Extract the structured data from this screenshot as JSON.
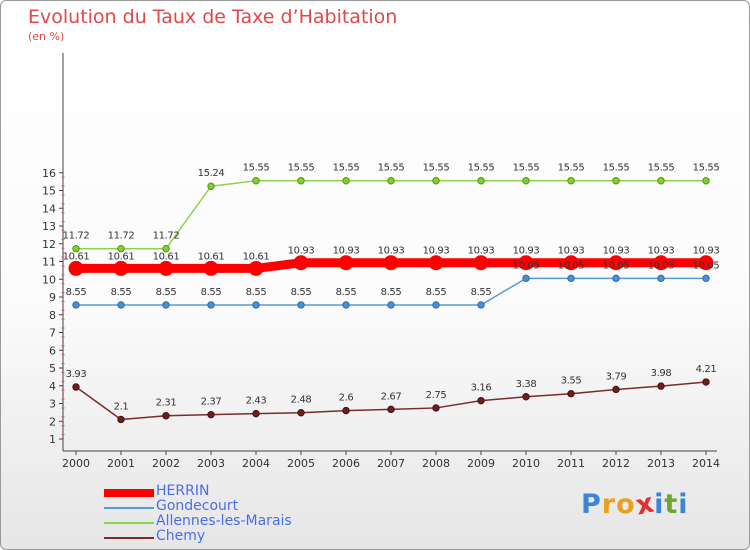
{
  "chart_data": {
    "type": "line",
    "title": "Evolution du Taux de Taxe d’Habitation",
    "subtitle": "(en %)",
    "xlabel": "",
    "ylabel": "",
    "x": [
      "2000",
      "2001",
      "2002",
      "2003",
      "2004",
      "2005",
      "2006",
      "2007",
      "2008",
      "2009",
      "2010",
      "2011",
      "2012",
      "2013",
      "2014"
    ],
    "ylim": [
      1,
      16
    ],
    "yticks": [
      1,
      2,
      3,
      4,
      5,
      6,
      7,
      8,
      9,
      10,
      11,
      12,
      13,
      14,
      15,
      16
    ],
    "grid": false,
    "legend_position": "bottom-left",
    "series": [
      {
        "name": "HERRIN",
        "color": "#ff0000",
        "values": [
          10.61,
          10.61,
          10.61,
          10.61,
          10.61,
          10.93,
          10.93,
          10.93,
          10.93,
          10.93,
          10.93,
          10.93,
          10.93,
          10.93,
          10.93
        ],
        "labels": [
          "10.61",
          "10.61",
          "10.61",
          "10.61",
          "10.61",
          "10.93",
          "10.93",
          "10.93",
          "10.93",
          "10.93",
          "10.93",
          "10.93",
          "10.93",
          "10.93",
          "10.93"
        ]
      },
      {
        "name": "Gondecourt",
        "color": "#5b9bd5",
        "values": [
          8.55,
          8.55,
          8.55,
          8.55,
          8.55,
          8.55,
          8.55,
          8.55,
          8.55,
          8.55,
          10.05,
          10.05,
          10.05,
          10.05,
          10.05
        ],
        "labels": [
          "8.55",
          "8.55",
          "8.55",
          "8.55",
          "8.55",
          "8.55",
          "8.55",
          "8.55",
          "8.55",
          "8.55",
          "10.05",
          "10.05",
          "10.05",
          "10.05",
          "10.05"
        ]
      },
      {
        "name": "Allennes-les-Marais",
        "color": "#8fd14f",
        "values": [
          11.72,
          11.72,
          11.72,
          15.24,
          15.55,
          15.55,
          15.55,
          15.55,
          15.55,
          15.55,
          15.55,
          15.55,
          15.55,
          15.55,
          15.55
        ],
        "labels": [
          "11.72",
          "11.72",
          "11.72",
          "15.24",
          "15.55",
          "15.55",
          "15.55",
          "15.55",
          "15.55",
          "15.55",
          "15.55",
          "15.55",
          "15.55",
          "15.55",
          "15.55"
        ]
      },
      {
        "name": "Chemy",
        "color": "#7b2b2b",
        "values": [
          3.93,
          2.1,
          2.31,
          2.37,
          2.43,
          2.48,
          2.6,
          2.67,
          2.75,
          3.16,
          3.38,
          3.55,
          3.79,
          3.98,
          4.21
        ],
        "labels": [
          "3.93",
          "2.1",
          "2.31",
          "2.37",
          "2.43",
          "2.48",
          "2.6",
          "2.67",
          "2.75",
          "3.16",
          "3.38",
          "3.55",
          "3.79",
          "3.98",
          "4.21"
        ]
      }
    ]
  },
  "logo": {
    "text": "Proxiti",
    "letters": [
      "P",
      "r",
      "o",
      "x",
      "i",
      "t",
      "i"
    ],
    "colors": [
      "#3a86d4",
      "#e8a020",
      "#e8a020",
      "#e03030",
      "#3a86d4",
      "#6aa832",
      "#3a86d4"
    ]
  }
}
